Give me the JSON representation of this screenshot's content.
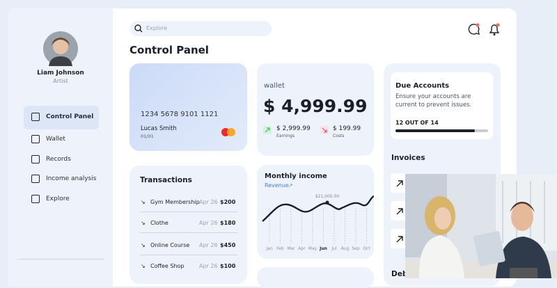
{
  "sidebar": {
    "profile": {
      "name": "Liam Johnson",
      "role": "Artist"
    },
    "nav": [
      "Control Panel",
      "Wallet",
      "Records",
      "Income analysis",
      "Explore"
    ]
  },
  "header": {
    "search_placeholder": "Explore",
    "page_title": "Control Panel"
  },
  "card": {
    "number": "1234 5678 9101 1121",
    "holder": "Lucas Smith",
    "expiry": "01/01"
  },
  "wallet": {
    "label": "wallet",
    "balance": "$ 4,999.99",
    "earnings": {
      "amount": "$ 2,999.99",
      "label": "Earnings"
    },
    "costs": {
      "amount": "$ 199.99",
      "label": "Costs"
    }
  },
  "due_accounts": {
    "title": "Due Accounts",
    "text": [
      "Ensure your accounts are",
      "current to prevent issues."
    ],
    "progress_label": "12 OUT OF 14"
  },
  "invoices": {
    "title": "Invoices"
  },
  "transactions": {
    "title": "Transactions",
    "rows": [
      [
        "Gym Membership",
        "Apr 26",
        "$200"
      ],
      [
        "Clothe",
        "Apr 26",
        "$180"
      ],
      [
        "Online Course",
        "Apr 26",
        "$450"
      ],
      [
        "Coffee Shop",
        "Apr 26",
        "$100"
      ]
    ]
  },
  "monthly_income": {
    "title": "Monthly income",
    "subtitle": "Revenue",
    "peak_label": "$21,000.00",
    "months": [
      "Jan",
      "Feb",
      "Mar",
      "Apr",
      "May",
      "Jun",
      "Jul",
      "Aug",
      "Sep",
      "Oct"
    ]
  },
  "partial_heading": "Deb"
}
